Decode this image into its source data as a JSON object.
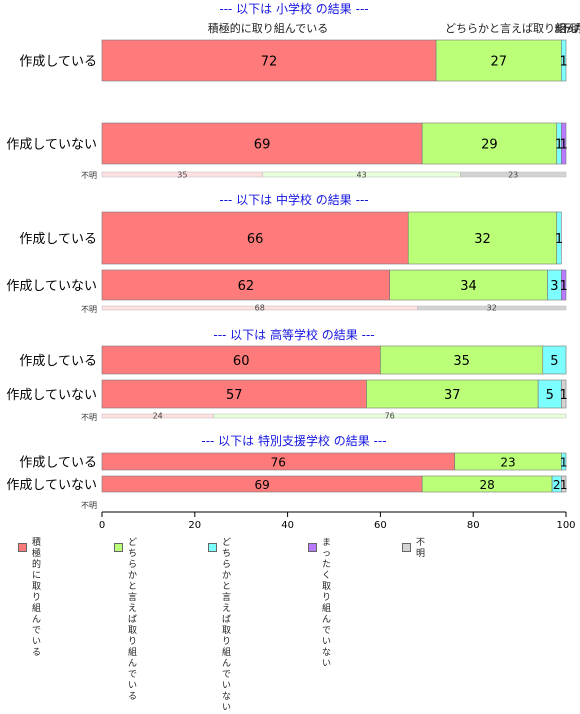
{
  "chart_data": {
    "type": "bar",
    "orientation": "horizontal",
    "stacked": true,
    "xlim": [
      0,
      100
    ],
    "xticks": [
      0,
      20,
      40,
      60,
      80,
      100
    ],
    "grid": false,
    "legend_position": "bottom",
    "categories_legend": [
      {
        "name": "積極的に\n取り組んでいる",
        "color": "#ff7b7b"
      },
      {
        "name": "どちらかと言えば\n取り組んでいる",
        "color": "#bbff78"
      },
      {
        "name": "どちらかと言えば\n取り組んでいない",
        "color": "#7bffff"
      },
      {
        "name": "まったく\n取り組んでいない",
        "color": "#b77bff"
      },
      {
        "name": "不明",
        "color": "#d3d3d3"
      }
    ],
    "top_labels": {
      "first": "積極的に取り組んでいる",
      "second": "どちらかと言えば取り組んでいる",
      "third": "まったく",
      "fourth": "不明"
    },
    "panels": [
      {
        "title": "--- 以下は 小学校 の結果 ---",
        "rows": [
          {
            "label": "作成している",
            "values": [
              72,
              27,
              1,
              0,
              0
            ]
          },
          {
            "label": "作成していない",
            "values": [
              69,
              29,
              1,
              1,
              0
            ]
          }
        ],
        "unknown": {
          "label": "不明",
          "values": [
            35,
            43,
            23
          ]
        }
      },
      {
        "title": "--- 以下は 中学校 の結果 ---",
        "rows": [
          {
            "label": "作成している",
            "values": [
              66,
              32,
              1,
              0,
              0
            ]
          },
          {
            "label": "作成していない",
            "values": [
              62,
              34,
              3,
              1,
              0
            ]
          }
        ],
        "unknown": {
          "label": "不明",
          "values": [
            68,
            0,
            32
          ]
        }
      },
      {
        "title": "--- 以下は 高等学校 の結果 ---",
        "rows": [
          {
            "label": "作成している",
            "values": [
              60,
              35,
              5,
              0,
              0
            ]
          },
          {
            "label": "作成していない",
            "values": [
              57,
              37,
              5,
              0,
              1
            ]
          }
        ],
        "unknown": {
          "label": "不明",
          "values": [
            24,
            76,
            0
          ]
        }
      },
      {
        "title": "--- 以下は 特別支援学校 の結果 ---",
        "rows": [
          {
            "label": "作成している",
            "values": [
              76,
              23,
              1,
              0,
              0
            ]
          },
          {
            "label": "作成していない",
            "values": [
              69,
              28,
              2,
              0,
              1
            ]
          }
        ],
        "unknown": {
          "label": "不明",
          "values": []
        }
      }
    ]
  }
}
